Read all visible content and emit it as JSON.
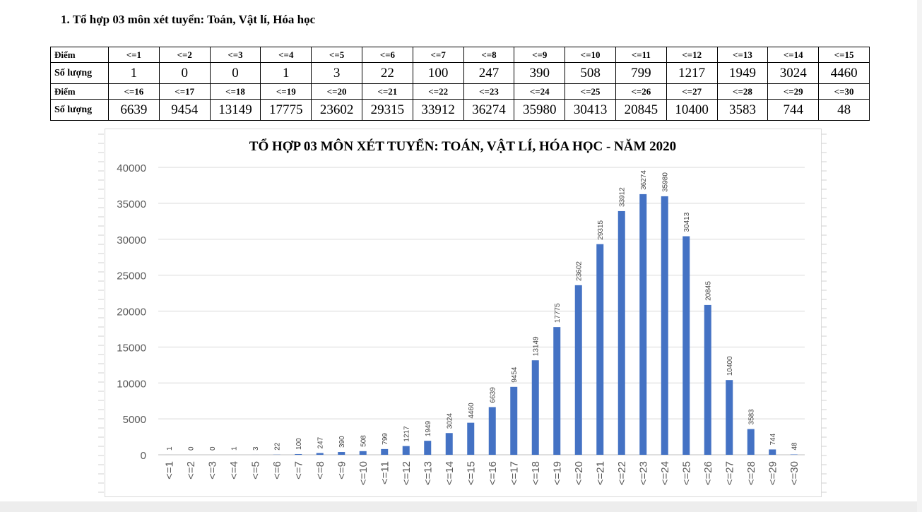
{
  "heading": "1. Tổ hợp 03 môn xét tuyển: Toán, Vật lí, Hóa học",
  "table": {
    "score_label": "Điểm",
    "count_label": "Số lượng",
    "row1_headers": [
      "<=1",
      "<=2",
      "<=3",
      "<=4",
      "<=5",
      "<=6",
      "<=7",
      "<=8",
      "<=9",
      "<=10",
      "<=11",
      "<=12",
      "<=13",
      "<=14",
      "<=15"
    ],
    "row1_values": [
      "1",
      "0",
      "0",
      "1",
      "3",
      "22",
      "100",
      "247",
      "390",
      "508",
      "799",
      "1217",
      "1949",
      "3024",
      "4460"
    ],
    "row2_headers": [
      "<=16",
      "<=17",
      "<=18",
      "<=19",
      "<=20",
      "<=21",
      "<=22",
      "<=23",
      "<=24",
      "<=25",
      "<=26",
      "<=27",
      "<=28",
      "<=29",
      "<=30"
    ],
    "row2_values": [
      "6639",
      "9454",
      "13149",
      "17775",
      "23602",
      "29315",
      "33912",
      "36274",
      "35980",
      "30413",
      "20845",
      "10400",
      "3583",
      "744",
      "48"
    ]
  },
  "chart_data": {
    "type": "bar",
    "title": "TỔ HỢP 03 MÔN XÉT TUYỂN: TOÁN, VẬT LÍ, HÓA HỌC - NĂM 2020",
    "xlabel": "",
    "ylabel": "",
    "ylim": [
      0,
      40000
    ],
    "yticks": [
      0,
      5000,
      10000,
      15000,
      20000,
      25000,
      30000,
      35000,
      40000
    ],
    "grid": true,
    "legend": "none",
    "bar_color": "#4472c4",
    "categories": [
      "<=1",
      "<=2",
      "<=3",
      "<=4",
      "<=5",
      "<=6",
      "<=7",
      "<=8",
      "<=9",
      "<=10",
      "<=11",
      "<=12",
      "<=13",
      "<=14",
      "<=15",
      "<=16",
      "<=17",
      "<=18",
      "<=19",
      "<=20",
      "<=21",
      "<=22",
      "<=23",
      "<=24",
      "<=25",
      "<=26",
      "<=27",
      "<=28",
      "<=29",
      "<=30"
    ],
    "values": [
      1,
      0,
      0,
      1,
      3,
      22,
      100,
      247,
      390,
      508,
      799,
      1217,
      1949,
      3024,
      4460,
      6639,
      9454,
      13149,
      17775,
      23602,
      29315,
      33912,
      36274,
      35980,
      30413,
      20845,
      10400,
      3583,
      744,
      48
    ]
  }
}
